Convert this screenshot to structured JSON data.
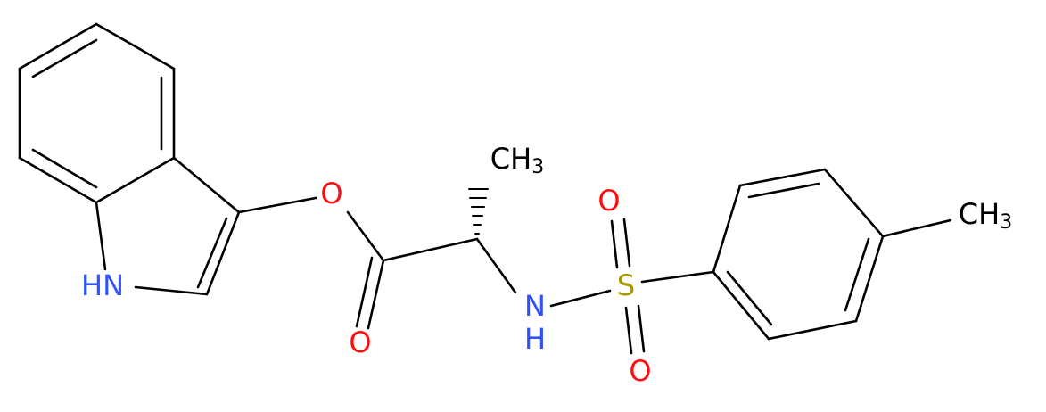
{
  "atoms": [
    {
      "hydrogen": "H",
      "label": "N"
    },
    {
      "label": "O"
    },
    {
      "label": "O"
    },
    {
      "label": "CH",
      "subscript": "3"
    },
    {
      "label": "N",
      "hydrogen": "H"
    },
    {
      "label": "S"
    },
    {
      "label": "O"
    },
    {
      "label": "O"
    },
    {
      "label": "CH",
      "subscript": "3"
    }
  ]
}
